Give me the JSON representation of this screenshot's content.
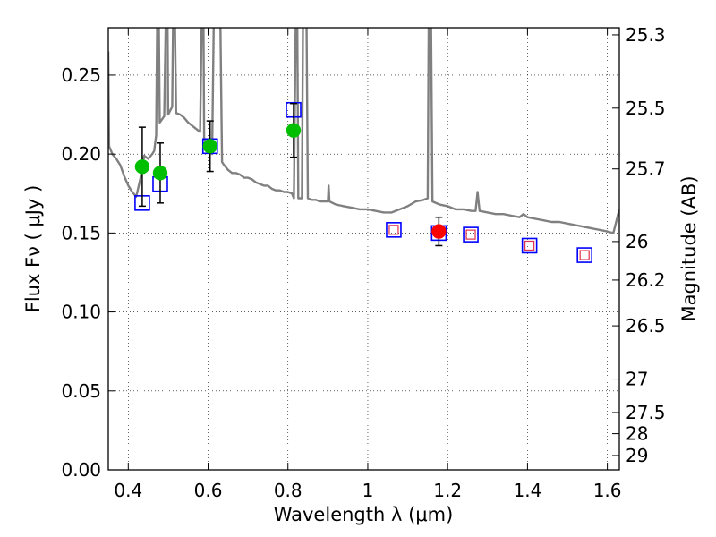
{
  "chart_data": {
    "type": "scatter",
    "xlabel": "Wavelength  λ (μm)",
    "ylabel": "Flux  Fν  ( μJy )",
    "ylabel_right": "Magnitude (AB)",
    "xlim": [
      0.35,
      1.63
    ],
    "ylim": [
      0.0,
      0.28
    ],
    "grid": true,
    "x_ticks": [
      0.4,
      0.6,
      0.8,
      1.0,
      1.2,
      1.4,
      1.6
    ],
    "x_tick_labels": [
      "0.4",
      "0.6",
      "0.8",
      "1",
      "1.2",
      "1.4",
      "1.6"
    ],
    "y_ticks": [
      0.0,
      0.05,
      0.1,
      0.15,
      0.2,
      0.25
    ],
    "y_tick_labels": [
      "0.00",
      "0.05",
      "0.10",
      "0.15",
      "0.20",
      "0.25"
    ],
    "right_ticks": [
      {
        "label": "25.3",
        "flux": 0.2755
      },
      {
        "label": "25.5",
        "flux": 0.2291
      },
      {
        "label": "25.7",
        "flux": 0.1906
      },
      {
        "label": "26",
        "flux": 0.1446
      },
      {
        "label": "26.2",
        "flux": 0.1202
      },
      {
        "label": "26.5",
        "flux": 0.0912
      },
      {
        "label": "27",
        "flux": 0.0575
      },
      {
        "label": "27.5",
        "flux": 0.0363
      },
      {
        "label": "28",
        "flux": 0.0229
      },
      {
        "label": "29",
        "flux": 0.0091
      }
    ],
    "observed_green": [
      {
        "x": 0.435,
        "y": 0.192,
        "err": 0.025
      },
      {
        "x": 0.48,
        "y": 0.188,
        "err": 0.019
      },
      {
        "x": 0.605,
        "y": 0.205,
        "err": 0.016
      },
      {
        "x": 0.814,
        "y": 0.215,
        "err": 0.017
      }
    ],
    "observed_red": [
      {
        "x": 1.178,
        "y": 0.151,
        "err": 0.009
      }
    ],
    "model_blue_squares": [
      {
        "x": 0.435,
        "y": 0.169
      },
      {
        "x": 0.48,
        "y": 0.181
      },
      {
        "x": 0.605,
        "y": 0.205
      },
      {
        "x": 0.814,
        "y": 0.228
      },
      {
        "x": 1.065,
        "y": 0.152
      },
      {
        "x": 1.178,
        "y": 0.15
      },
      {
        "x": 1.258,
        "y": 0.149
      },
      {
        "x": 1.405,
        "y": 0.142
      },
      {
        "x": 1.543,
        "y": 0.136
      }
    ],
    "model_red_squares": [
      {
        "x": 1.065,
        "y": 0.152
      },
      {
        "x": 1.258,
        "y": 0.149
      },
      {
        "x": 1.405,
        "y": 0.142
      },
      {
        "x": 1.543,
        "y": 0.136
      }
    ],
    "spectrum": [
      [
        0.35,
        0.265
      ],
      [
        0.352,
        0.205
      ],
      [
        0.36,
        0.2
      ],
      [
        0.37,
        0.197
      ],
      [
        0.38,
        0.193
      ],
      [
        0.39,
        0.186
      ],
      [
        0.4,
        0.18
      ],
      [
        0.41,
        0.176
      ],
      [
        0.42,
        0.173
      ],
      [
        0.43,
        0.184
      ],
      [
        0.44,
        0.199
      ],
      [
        0.45,
        0.197
      ],
      [
        0.46,
        0.2
      ],
      [
        0.465,
        0.202
      ],
      [
        0.47,
        0.212
      ],
      [
        0.473,
        0.3
      ],
      [
        0.476,
        0.3
      ],
      [
        0.479,
        0.22
      ],
      [
        0.49,
        0.224
      ],
      [
        0.495,
        0.3
      ],
      [
        0.498,
        0.3
      ],
      [
        0.5,
        0.225
      ],
      [
        0.51,
        0.23
      ],
      [
        0.513,
        0.3
      ],
      [
        0.516,
        0.3
      ],
      [
        0.52,
        0.226
      ],
      [
        0.53,
        0.225
      ],
      [
        0.54,
        0.223
      ],
      [
        0.55,
        0.22
      ],
      [
        0.56,
        0.218
      ],
      [
        0.57,
        0.216
      ],
      [
        0.58,
        0.214
      ],
      [
        0.585,
        0.3
      ],
      [
        0.588,
        0.3
      ],
      [
        0.59,
        0.21
      ],
      [
        0.6,
        0.205
      ],
      [
        0.61,
        0.2
      ],
      [
        0.615,
        0.3
      ],
      [
        0.62,
        0.3
      ],
      [
        0.625,
        0.3
      ],
      [
        0.63,
        0.3
      ],
      [
        0.635,
        0.195
      ],
      [
        0.64,
        0.193
      ],
      [
        0.65,
        0.19
      ],
      [
        0.66,
        0.188
      ],
      [
        0.67,
        0.188
      ],
      [
        0.68,
        0.187
      ],
      [
        0.69,
        0.185
      ],
      [
        0.7,
        0.185
      ],
      [
        0.71,
        0.184
      ],
      [
        0.72,
        0.182
      ],
      [
        0.73,
        0.181
      ],
      [
        0.74,
        0.18
      ],
      [
        0.75,
        0.18
      ],
      [
        0.76,
        0.178
      ],
      [
        0.77,
        0.177
      ],
      [
        0.78,
        0.177
      ],
      [
        0.79,
        0.176
      ],
      [
        0.8,
        0.176
      ],
      [
        0.81,
        0.175
      ],
      [
        0.815,
        0.172
      ],
      [
        0.82,
        0.3
      ],
      [
        0.823,
        0.3
      ],
      [
        0.826,
        0.172
      ],
      [
        0.835,
        0.172
      ],
      [
        0.838,
        0.3
      ],
      [
        0.842,
        0.3
      ],
      [
        0.846,
        0.3
      ],
      [
        0.85,
        0.172
      ],
      [
        0.86,
        0.171
      ],
      [
        0.87,
        0.171
      ],
      [
        0.88,
        0.17
      ],
      [
        0.89,
        0.17
      ],
      [
        0.9,
        0.17
      ],
      [
        0.902,
        0.18
      ],
      [
        0.904,
        0.17
      ],
      [
        0.92,
        0.168
      ],
      [
        0.94,
        0.167
      ],
      [
        0.96,
        0.166
      ],
      [
        0.98,
        0.165
      ],
      [
        1.0,
        0.165
      ],
      [
        1.02,
        0.164
      ],
      [
        1.04,
        0.163
      ],
      [
        1.06,
        0.163
      ],
      [
        1.08,
        0.165
      ],
      [
        1.1,
        0.167
      ],
      [
        1.12,
        0.17
      ],
      [
        1.14,
        0.171
      ],
      [
        1.15,
        0.172
      ],
      [
        1.153,
        0.3
      ],
      [
        1.158,
        0.3
      ],
      [
        1.162,
        0.17
      ],
      [
        1.18,
        0.168
      ],
      [
        1.2,
        0.167
      ],
      [
        1.22,
        0.165
      ],
      [
        1.24,
        0.165
      ],
      [
        1.26,
        0.164
      ],
      [
        1.27,
        0.164
      ],
      [
        1.275,
        0.176
      ],
      [
        1.28,
        0.164
      ],
      [
        1.3,
        0.163
      ],
      [
        1.32,
        0.162
      ],
      [
        1.34,
        0.162
      ],
      [
        1.36,
        0.161
      ],
      [
        1.38,
        0.16
      ],
      [
        1.39,
        0.162
      ],
      [
        1.4,
        0.16
      ],
      [
        1.42,
        0.159
      ],
      [
        1.44,
        0.158
      ],
      [
        1.46,
        0.157
      ],
      [
        1.48,
        0.157
      ],
      [
        1.5,
        0.156
      ],
      [
        1.52,
        0.155
      ],
      [
        1.54,
        0.154
      ],
      [
        1.56,
        0.153
      ],
      [
        1.58,
        0.152
      ],
      [
        1.6,
        0.151
      ],
      [
        1.615,
        0.15
      ],
      [
        1.625,
        0.16
      ],
      [
        1.63,
        0.165
      ]
    ]
  }
}
